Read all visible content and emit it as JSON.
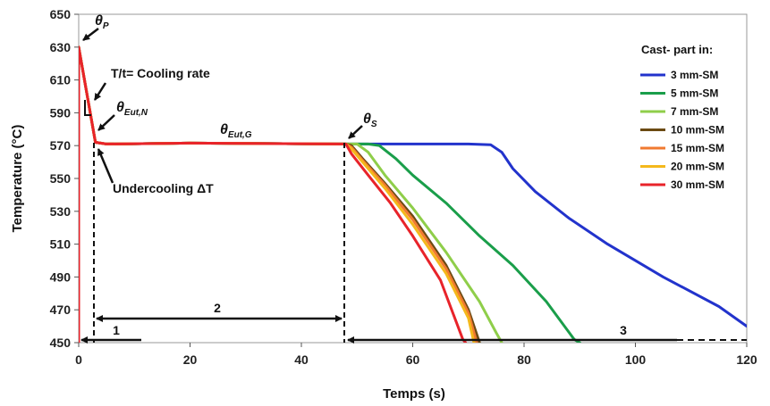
{
  "chart_data": {
    "type": "line",
    "xlabel": "Temps (s)",
    "ylabel": "Temperature (°C)",
    "xlim": [
      0,
      120
    ],
    "ylim": [
      450,
      650
    ],
    "xticks": [
      0,
      20,
      40,
      60,
      80,
      100,
      120
    ],
    "yticks": [
      450,
      470,
      490,
      510,
      530,
      550,
      570,
      590,
      610,
      630,
      650
    ],
    "grid": false,
    "legend": {
      "title": "Cast- part in:",
      "position": "top-right"
    },
    "series": [
      {
        "name": "3 mm-SM",
        "color": "#2233cc",
        "points": [
          [
            0,
            450
          ],
          [
            0,
            630
          ],
          [
            3,
            572
          ],
          [
            5,
            571
          ],
          [
            20,
            571.5
          ],
          [
            48,
            571
          ],
          [
            70,
            571
          ],
          [
            74,
            570.5
          ],
          [
            76,
            566
          ],
          [
            78,
            556
          ],
          [
            82,
            542
          ],
          [
            88,
            526
          ],
          [
            95,
            510
          ],
          [
            105,
            490
          ],
          [
            115,
            472
          ],
          [
            120,
            460
          ]
        ]
      },
      {
        "name": "5 mm-SM",
        "color": "#1a9e4a",
        "points": [
          [
            0,
            450
          ],
          [
            0,
            630
          ],
          [
            3,
            572
          ],
          [
            5,
            571
          ],
          [
            20,
            571.5
          ],
          [
            48,
            571
          ],
          [
            52,
            571
          ],
          [
            54,
            570
          ],
          [
            57,
            562
          ],
          [
            60,
            552
          ],
          [
            66,
            535
          ],
          [
            72,
            515
          ],
          [
            78,
            497
          ],
          [
            84,
            475
          ],
          [
            89,
            452
          ],
          [
            90,
            450
          ]
        ]
      },
      {
        "name": "7 mm-SM",
        "color": "#8fce4a",
        "points": [
          [
            0,
            450
          ],
          [
            0,
            630
          ],
          [
            3,
            572
          ],
          [
            5,
            571
          ],
          [
            20,
            571.5
          ],
          [
            48,
            571
          ],
          [
            50,
            571
          ],
          [
            52,
            566
          ],
          [
            55,
            552
          ],
          [
            60,
            532
          ],
          [
            66,
            505
          ],
          [
            72,
            475
          ],
          [
            75,
            456
          ],
          [
            76,
            450
          ]
        ]
      },
      {
        "name": "10 mm-SM",
        "color": "#6b4a12",
        "points": [
          [
            0,
            450
          ],
          [
            0,
            630
          ],
          [
            3,
            572
          ],
          [
            5,
            571
          ],
          [
            20,
            571.5
          ],
          [
            48,
            571
          ],
          [
            49,
            570
          ],
          [
            51,
            562
          ],
          [
            55,
            547
          ],
          [
            60,
            527
          ],
          [
            66,
            497
          ],
          [
            70,
            470
          ],
          [
            72,
            450
          ]
        ]
      },
      {
        "name": "15 mm-SM",
        "color": "#f07a30",
        "points": [
          [
            0,
            450
          ],
          [
            0,
            630
          ],
          [
            3,
            572
          ],
          [
            5,
            571
          ],
          [
            20,
            571.5
          ],
          [
            48,
            571
          ],
          [
            49,
            569
          ],
          [
            51,
            561
          ],
          [
            55,
            546
          ],
          [
            60,
            525
          ],
          [
            66,
            495
          ],
          [
            70,
            468
          ],
          [
            71.5,
            450
          ]
        ]
      },
      {
        "name": "20 mm-SM",
        "color": "#f4b81c",
        "points": [
          [
            0,
            450
          ],
          [
            0,
            630
          ],
          [
            3,
            572
          ],
          [
            5,
            571
          ],
          [
            20,
            571.5
          ],
          [
            48,
            571
          ],
          [
            49,
            568
          ],
          [
            51,
            560
          ],
          [
            55,
            544
          ],
          [
            60,
            522
          ],
          [
            66,
            492
          ],
          [
            70,
            465
          ],
          [
            71,
            450
          ]
        ]
      },
      {
        "name": "30 mm-SM",
        "color": "#e8232a",
        "points": [
          [
            0,
            450
          ],
          [
            0,
            630
          ],
          [
            3,
            572
          ],
          [
            5,
            571
          ],
          [
            20,
            571.5
          ],
          [
            48,
            571
          ],
          [
            49,
            565
          ],
          [
            52,
            552
          ],
          [
            56,
            535
          ],
          [
            60,
            515
          ],
          [
            65,
            488
          ],
          [
            69,
            452
          ],
          [
            69.5,
            450
          ]
        ]
      }
    ],
    "annotations": {
      "theta_p": {
        "symbol": "θ",
        "sub": "P"
      },
      "cooling_rate": "T/t= Cooling rate",
      "theta_eut_n": {
        "symbol": "θ",
        "sub": "Eut,N"
      },
      "theta_eut_g": {
        "symbol": "θ",
        "sub": "Eut,G"
      },
      "theta_s": {
        "symbol": "θ",
        "sub": "S"
      },
      "undercooling": "Undercooling ΔT",
      "region_1": "1",
      "region_2": "2",
      "region_3": "3"
    }
  }
}
